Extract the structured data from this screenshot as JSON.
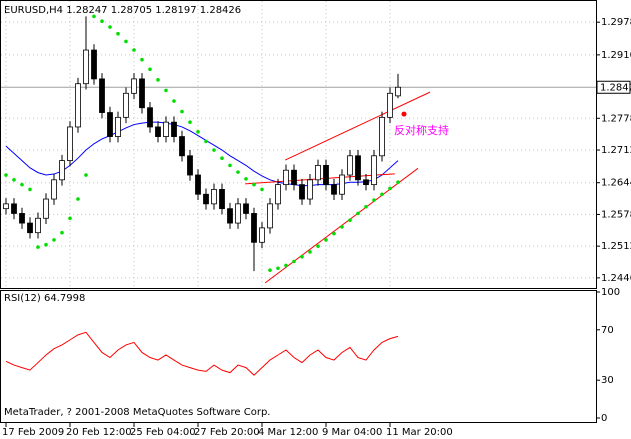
{
  "chart_data": [
    {
      "type": "candlestick",
      "title": "EURUSD,H4  1.28247 1.28705 1.28197 1.28426",
      "categories": [
        "17 Feb 2009",
        null,
        null,
        null,
        null,
        null,
        null,
        null,
        "20 Feb 12:00",
        null,
        null,
        null,
        null,
        null,
        null,
        null,
        "25 Feb 04:00",
        null,
        null,
        null,
        null,
        null,
        null,
        null,
        "27 Feb 20:00",
        null,
        null,
        null,
        null,
        null,
        null,
        null,
        "4 Mar 12:00",
        null,
        null,
        null,
        null,
        null,
        null,
        null,
        "9 Mar 04:00",
        null,
        null,
        null,
        null,
        null,
        null,
        null,
        "11 Mar 20:00",
        null
      ],
      "open": [
        1.259,
        1.26,
        1.258,
        1.256,
        1.254,
        1.257,
        1.261,
        1.265,
        1.269,
        1.276,
        1.285,
        1.292,
        1.286,
        1.279,
        1.274,
        1.278,
        1.283,
        1.286,
        1.28,
        1.276,
        1.274,
        1.277,
        1.274,
        1.27,
        1.266,
        1.262,
        1.26,
        1.263,
        1.259,
        1.256,
        1.26,
        1.258,
        1.252,
        1.255,
        1.26,
        1.264,
        1.267,
        1.264,
        1.261,
        1.265,
        1.268,
        1.264,
        1.262,
        1.266,
        1.27,
        1.265,
        1.264,
        1.27,
        1.278,
        1.28247
      ],
      "high": [
        1.2612,
        1.2612,
        1.2592,
        1.2572,
        1.2582,
        1.2622,
        1.2662,
        1.2702,
        1.2772,
        1.2862,
        1.299,
        1.2932,
        1.2872,
        1.2802,
        1.2792,
        1.2842,
        1.2872,
        1.2872,
        1.2812,
        1.2772,
        1.2782,
        1.2782,
        1.2752,
        1.2712,
        1.2672,
        1.2632,
        1.2642,
        1.2642,
        1.2602,
        1.2612,
        1.2612,
        1.2592,
        1.2562,
        1.2612,
        1.2652,
        1.2682,
        1.2682,
        1.2652,
        1.2662,
        1.2692,
        1.2692,
        1.2652,
        1.2672,
        1.2712,
        1.2712,
        1.2662,
        1.2712,
        1.2792,
        1.2842,
        1.28705
      ],
      "low": [
        1.2578,
        1.2568,
        1.2548,
        1.2528,
        1.2528,
        1.2558,
        1.2598,
        1.2638,
        1.2678,
        1.2748,
        1.2838,
        1.2848,
        1.2778,
        1.2728,
        1.2728,
        1.2768,
        1.2818,
        1.2788,
        1.2748,
        1.2728,
        1.2728,
        1.2728,
        1.2688,
        1.2648,
        1.2608,
        1.2588,
        1.2588,
        1.2578,
        1.2548,
        1.2548,
        1.2568,
        1.246,
        1.2508,
        1.2538,
        1.2588,
        1.2628,
        1.2628,
        1.2598,
        1.2598,
        1.2638,
        1.2628,
        1.2608,
        1.2608,
        1.2648,
        1.2638,
        1.2628,
        1.2628,
        1.2688,
        1.2768,
        1.28197
      ],
      "close": [
        1.26,
        1.258,
        1.256,
        1.254,
        1.257,
        1.261,
        1.265,
        1.269,
        1.276,
        1.285,
        1.292,
        1.286,
        1.279,
        1.274,
        1.278,
        1.283,
        1.286,
        1.28,
        1.276,
        1.274,
        1.277,
        1.274,
        1.27,
        1.266,
        1.262,
        1.26,
        1.263,
        1.259,
        1.256,
        1.26,
        1.258,
        1.252,
        1.255,
        1.26,
        1.264,
        1.267,
        1.264,
        1.261,
        1.265,
        1.268,
        1.264,
        1.262,
        1.266,
        1.27,
        1.265,
        1.264,
        1.27,
        1.278,
        1.283,
        1.28426
      ],
      "overlays": [
        {
          "color": "#0000ff",
          "values": [
            1.272,
            1.2705,
            1.269,
            1.2675,
            1.2665,
            1.266,
            1.2662,
            1.2668,
            1.268,
            1.2695,
            1.2712,
            1.2725,
            1.2735,
            1.2742,
            1.275,
            1.2758,
            1.2765,
            1.2768,
            1.277,
            1.277,
            1.2768,
            1.2765,
            1.276,
            1.2752,
            1.2742,
            1.2732,
            1.2722,
            1.2712,
            1.27,
            1.269,
            1.268,
            1.2668,
            1.2658,
            1.265,
            1.2645,
            1.2642,
            1.264,
            1.2638,
            1.2638,
            1.264,
            1.264,
            1.264,
            1.2642,
            1.2645,
            1.2645,
            1.2646,
            1.265,
            1.266,
            1.2675,
            1.269
          ]
        }
      ],
      "sar": {
        "color": "#00dd00",
        "values": [
          1.266,
          1.265,
          1.264,
          1.263,
          1.251,
          1.2515,
          1.2525,
          1.254,
          1.257,
          1.261,
          1.266,
          1.299,
          1.298,
          1.2968,
          1.2954,
          1.2938,
          1.292,
          1.29,
          1.288,
          1.2858,
          1.2836,
          1.2814,
          1.2792,
          1.277,
          1.275,
          1.273,
          1.2712,
          1.2695,
          1.268,
          1.2666,
          1.2652,
          1.264,
          1.263,
          1.2462,
          1.2466,
          1.2472,
          1.248,
          1.249,
          1.25,
          1.2512,
          1.2525,
          1.2538,
          1.2552,
          1.2566,
          1.258,
          1.2594,
          1.2608,
          1.262,
          1.2632,
          1.2645
        ]
      },
      "trendlines": [
        {
          "color": "#ff0000",
          "x": [
            34.9,
            53
          ],
          "y": [
            1.26912,
            1.28325
          ]
        },
        {
          "color": "#ff0000",
          "x": [
            32.4,
            51.5
          ],
          "y": [
            1.24356,
            1.2674
          ]
        },
        {
          "color": "#ff0000",
          "x": [
            29.9,
            48.6
          ],
          "y": [
            1.26417,
            1.26625
          ]
        }
      ],
      "marker": {
        "color": "#ff0000",
        "x": 49.75,
        "y": 1.27868
      },
      "annotation": {
        "text": "反对称支持",
        "color": "#ff00ff"
      },
      "last_price": 1.28426,
      "ylim": [
        1.2427,
        1.302
      ],
      "yticks": [
        {
          "value": 1.2978,
          "label": "1.29780"
        },
        {
          "value": 1.291,
          "label": "1.29100"
        },
        {
          "value": 1.2778,
          "label": "1.27780"
        },
        {
          "value": 1.2712,
          "label": "1.27120"
        },
        {
          "value": 1.2644,
          "label": "1.26440"
        },
        {
          "value": 1.2578,
          "label": "1.25780"
        },
        {
          "value": 1.2512,
          "label": "1.25120"
        },
        {
          "value": 1.2446,
          "label": "1.24460"
        }
      ],
      "grid": true
    },
    {
      "type": "line",
      "title": "RSI(12) 64.7998",
      "color": "#ff0000",
      "values": [
        45,
        42,
        40,
        38,
        44,
        50,
        55,
        58,
        62,
        66,
        68,
        60,
        52,
        48,
        54,
        58,
        60,
        52,
        48,
        46,
        50,
        46,
        42,
        40,
        38,
        37,
        42,
        38,
        36,
        42,
        40,
        34,
        40,
        46,
        50,
        54,
        48,
        44,
        50,
        54,
        48,
        46,
        52,
        56,
        48,
        46,
        54,
        60,
        63,
        64.7998
      ],
      "ylim": [
        0,
        100
      ],
      "yticks": [
        100,
        70,
        30,
        0
      ]
    }
  ],
  "footer": "MetaTrader, ? 2001-2008 MetaQuotes Software Corp."
}
